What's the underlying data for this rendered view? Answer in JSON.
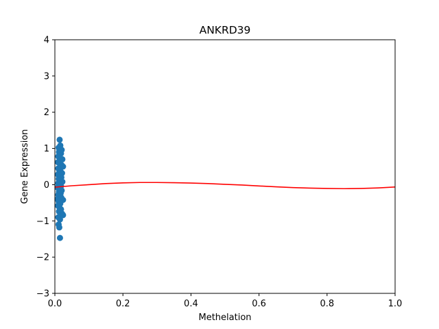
{
  "chart_data": {
    "type": "scatter",
    "title": "ANKRD39",
    "xlabel": "Methelation",
    "ylabel": "Gene Expression",
    "xlim": [
      0.0,
      1.0
    ],
    "ylim": [
      -3,
      4
    ],
    "grid": false,
    "x_ticks": [
      "0.0",
      "0.2",
      "0.4",
      "0.6",
      "0.8",
      "1.0"
    ],
    "y_ticks": [
      "−3",
      "−2",
      "−1",
      "0",
      "1",
      "2",
      "3",
      "4"
    ],
    "colors": {
      "points": "#1f77b4",
      "fit": "#ff0000"
    },
    "series": [
      {
        "type": "scatter",
        "points": [
          [
            0.014,
            1.24
          ],
          [
            0.016,
            1.08
          ],
          [
            0.011,
            1.02
          ],
          [
            0.012,
            0.9
          ],
          [
            0.018,
            0.86
          ],
          [
            0.01,
            0.78
          ],
          [
            0.022,
            0.7
          ],
          [
            0.012,
            0.64
          ],
          [
            0.015,
            0.58
          ],
          [
            0.02,
            0.54
          ],
          [
            0.024,
            0.5
          ],
          [
            0.01,
            0.45
          ],
          [
            0.013,
            0.4
          ],
          [
            0.017,
            0.36
          ],
          [
            0.021,
            0.32
          ],
          [
            0.009,
            0.28
          ],
          [
            0.014,
            0.24
          ],
          [
            0.019,
            0.2
          ],
          [
            0.011,
            0.16
          ],
          [
            0.016,
            0.12
          ],
          [
            0.022,
            0.08
          ],
          [
            0.01,
            0.04
          ],
          [
            0.013,
            0.0
          ],
          [
            0.018,
            -0.04
          ],
          [
            0.008,
            -0.08
          ],
          [
            0.015,
            -0.12
          ],
          [
            0.02,
            -0.16
          ],
          [
            0.012,
            -0.2
          ],
          [
            0.017,
            -0.24
          ],
          [
            0.01,
            -0.28
          ],
          [
            0.014,
            -0.32
          ],
          [
            0.019,
            -0.36
          ],
          [
            0.024,
            -0.42
          ],
          [
            0.011,
            -0.46
          ],
          [
            0.016,
            -0.52
          ],
          [
            0.009,
            -0.58
          ],
          [
            0.013,
            -0.62
          ],
          [
            0.018,
            -0.68
          ],
          [
            0.012,
            -0.74
          ],
          [
            0.021,
            -0.8
          ],
          [
            0.024,
            -0.84
          ],
          [
            0.01,
            -0.9
          ],
          [
            0.015,
            -0.96
          ],
          [
            0.011,
            -1.1
          ],
          [
            0.013,
            -1.18
          ],
          [
            0.015,
            -1.47
          ],
          [
            0.009,
            0.62
          ],
          [
            0.011,
            0.3
          ],
          [
            0.008,
            -0.4
          ],
          [
            0.02,
            0.96
          ]
        ]
      },
      {
        "type": "line",
        "x": [
          0.0,
          0.05,
          0.1,
          0.15,
          0.2,
          0.25,
          0.3,
          0.35,
          0.4,
          0.45,
          0.5,
          0.55,
          0.6,
          0.65,
          0.7,
          0.75,
          0.8,
          0.85,
          0.9,
          0.95,
          1.0
        ],
        "y": [
          -0.07,
          -0.03,
          0.0,
          0.03,
          0.05,
          0.06,
          0.06,
          0.055,
          0.045,
          0.03,
          0.01,
          -0.01,
          -0.035,
          -0.06,
          -0.08,
          -0.095,
          -0.105,
          -0.11,
          -0.105,
          -0.09,
          -0.065
        ]
      }
    ]
  }
}
